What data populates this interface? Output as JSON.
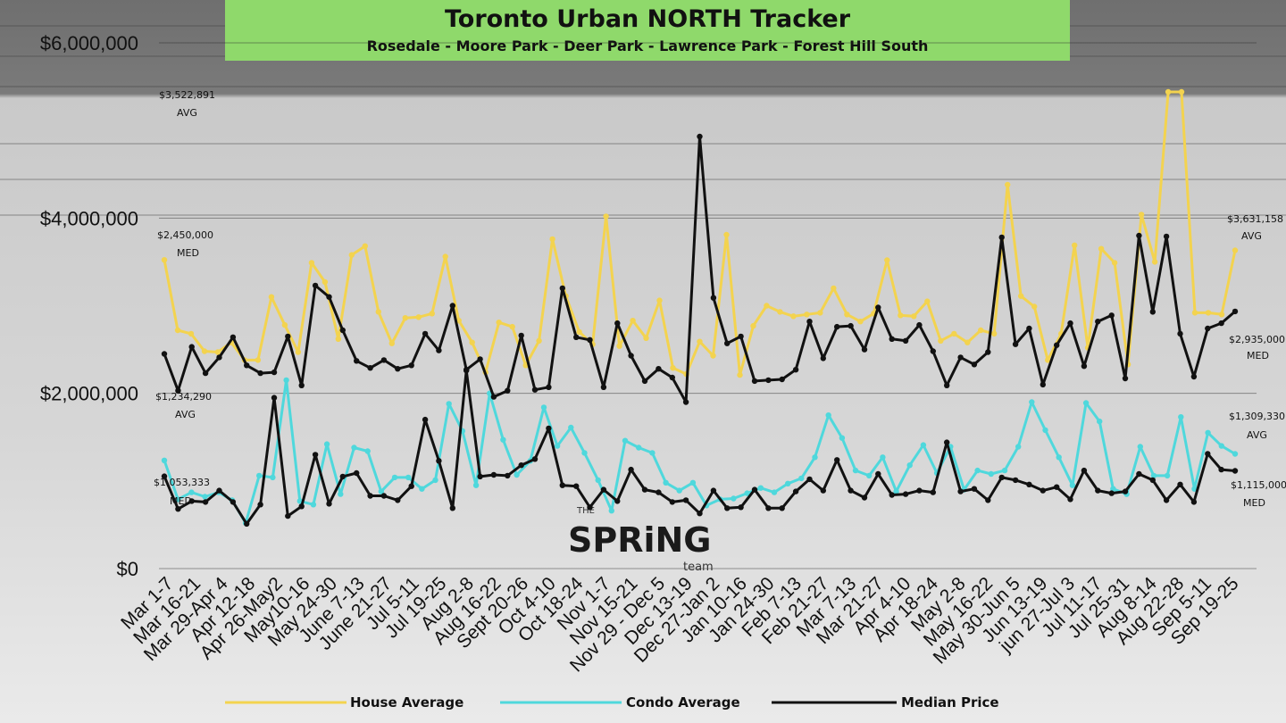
{
  "title": "Toronto Urban NORTH Tracker",
  "subtitle": "Rosedale - Moore Park - Deer Park - Lawrence Park - Forest Hill South",
  "logo": {
    "small": "THE",
    "main": "SPRiNG",
    "sub": "team"
  },
  "annotations": {
    "start_house_avg": "$3,522,891",
    "start_house_avg_label": "AVG",
    "start_median": "$2,450,000",
    "start_median_label": "MED",
    "start_condo_avg": "$1,234,290",
    "start_condo_avg_label": "AVG",
    "start_condo_med": "$1,053,333",
    "start_condo_med_label": "MED",
    "end_house_avg": "$3,631,158",
    "end_house_avg_label": "AVG",
    "end_median": "$2,935,000",
    "end_median_label": "MED",
    "end_condo_avg": "$1,309,330",
    "end_condo_avg_label": "AVG",
    "end_condo_med": "$1,115,000",
    "end_condo_med_label": "MED"
  },
  "chart_data": {
    "type": "line",
    "title": "Toronto Urban NORTH Tracker",
    "subtitle": "Rosedale - Moore Park - Deer Park - Lawrence Park - Forest Hill South",
    "ylim": [
      0,
      6000000
    ],
    "yticks": [
      "$0",
      "$2,000,000",
      "$4,000,000",
      "$6,000,000"
    ],
    "grid": true,
    "legend_position": "bottom",
    "xtick_labels": [
      "Mar 1-7",
      "Mar 16-21",
      "Mar 29-Apr 4",
      "Apr 12-18",
      "Apr 26-May2",
      "May10-16",
      "May 24-30",
      "June 7-13",
      "June 21-27",
      "Jul 5-11",
      "Jul 19-25",
      "Aug 2-8",
      "Aug 16-22",
      "Sept 20-26",
      "Oct 4-10",
      "Oct 18-24",
      "Nov 1-7",
      "Nov 15-21",
      "Nov 29 - Dec 5",
      "Dec 13-19",
      "Dec 27-Jan 2",
      "Jan 10-16",
      "Jan 24-30",
      "Feb 7-13",
      "Feb 21-27",
      "Mar 7-13",
      "Mar 21-27",
      "Apr 4-10",
      "Apr 18-24",
      "May 2-8",
      "May 16-22",
      "May 30-Jun 5",
      "Jun 13-19",
      "jun 27-Jul 3",
      "Jul 11-17",
      "Jul 25-31",
      "Aug 8-14",
      "Aug 22-28",
      "Sep 5-11",
      "Sep 19-25"
    ],
    "series": [
      {
        "name": "House Average",
        "color": "#f3d34f",
        "values": [
          3522891,
          2720000,
          2680000,
          2480000,
          2470000,
          2580000,
          2380000,
          2380000,
          3100000,
          2780000,
          2470000,
          3490000,
          3270000,
          2620000,
          3580000,
          3680000,
          2930000,
          2570000,
          2860000,
          2870000,
          2910000,
          3560000,
          2830000,
          2580000,
          2240000,
          2810000,
          2760000,
          2320000,
          2600000,
          3760000,
          3110000,
          2700000,
          2560000,
          4020000,
          2540000,
          2830000,
          2630000,
          3060000,
          2290000,
          2220000,
          2590000,
          2430000,
          3810000,
          2210000,
          2770000,
          3000000,
          2930000,
          2880000,
          2900000,
          2920000,
          3200000,
          2900000,
          2820000,
          2910000,
          3520000,
          2890000,
          2880000,
          3050000,
          2600000,
          2680000,
          2580000,
          2720000,
          2680000,
          4380000,
          3110000,
          2990000,
          2380000,
          2680000,
          3690000,
          2520000,
          3650000,
          3490000,
          2330000,
          4040000,
          3500000,
          5440000,
          5440000,
          2920000,
          2920000,
          2900000,
          3631158
        ]
      },
      {
        "name": "Condo Average",
        "color": "#4fd8dc",
        "values": [
          1234290,
          790000,
          870000,
          820000,
          870000,
          780000,
          520000,
          1060000,
          1040000,
          2150000,
          770000,
          730000,
          1420000,
          850000,
          1380000,
          1340000,
          880000,
          1040000,
          1040000,
          910000,
          1010000,
          1880000,
          1570000,
          950000,
          2000000,
          1470000,
          1070000,
          1230000,
          1840000,
          1400000,
          1610000,
          1320000,
          1010000,
          660000,
          1460000,
          1380000,
          1320000,
          980000,
          890000,
          980000,
          720000,
          790000,
          800000,
          860000,
          920000,
          870000,
          970000,
          1030000,
          1270000,
          1750000,
          1490000,
          1120000,
          1060000,
          1270000,
          880000,
          1180000,
          1410000,
          1090000,
          1390000,
          900000,
          1120000,
          1080000,
          1120000,
          1390000,
          1900000,
          1580000,
          1270000,
          950000,
          1890000,
          1680000,
          910000,
          850000,
          1390000,
          1060000,
          1060000,
          1730000,
          910000,
          1550000,
          1400000,
          1309330
        ]
      },
      {
        "name": "Median Price",
        "color": "#111111",
        "values": [
          2450000,
          2030000,
          2530000,
          2230000,
          2410000,
          2640000,
          2320000,
          2230000,
          2240000,
          2650000,
          2090000,
          3230000,
          3100000,
          2720000,
          2370000,
          2290000,
          2380000,
          2280000,
          2320000,
          2680000,
          2490000,
          3000000,
          2270000,
          2390000,
          1960000,
          2030000,
          2660000,
          2040000,
          2070000,
          3200000,
          2640000,
          2610000,
          2070000,
          2800000,
          2430000,
          2140000,
          2280000,
          2180000,
          1900000,
          4930000,
          3090000,
          2570000,
          2650000,
          2140000,
          2150000,
          2160000,
          2270000,
          2820000,
          2400000,
          2760000,
          2770000,
          2500000,
          2980000,
          2620000,
          2600000,
          2780000,
          2480000,
          2090000,
          2410000,
          2330000,
          2470000,
          3780000,
          2560000,
          2740000,
          2100000,
          2550000,
          2800000,
          2310000,
          2820000,
          2890000,
          2170000,
          3800000,
          2930000,
          3790000,
          2680000,
          2190000,
          2740000,
          2800000,
          2935000
        ]
      },
      {
        "name": "Condo Median",
        "color": "#111111",
        "values": [
          1053333,
          680000,
          770000,
          760000,
          890000,
          760000,
          510000,
          730000,
          1950000,
          600000,
          710000,
          1300000,
          740000,
          1050000,
          1090000,
          830000,
          830000,
          780000,
          940000,
          1700000,
          1230000,
          690000,
          2260000,
          1050000,
          1070000,
          1060000,
          1180000,
          1250000,
          1600000,
          950000,
          940000,
          700000,
          900000,
          770000,
          1130000,
          900000,
          870000,
          760000,
          780000,
          630000,
          890000,
          690000,
          700000,
          900000,
          690000,
          690000,
          880000,
          1020000,
          890000,
          1240000,
          890000,
          810000,
          1080000,
          840000,
          850000,
          890000,
          870000,
          1440000,
          880000,
          910000,
          780000,
          1040000,
          1010000,
          960000,
          890000,
          930000,
          790000,
          1120000,
          890000,
          860000,
          880000,
          1080000,
          1010000,
          780000,
          960000,
          760000,
          1310000,
          1130000,
          1115000
        ]
      }
    ]
  },
  "legend": {
    "house_label": "House Average",
    "condo_label": "Condo Average",
    "median_label": "Median Price"
  }
}
